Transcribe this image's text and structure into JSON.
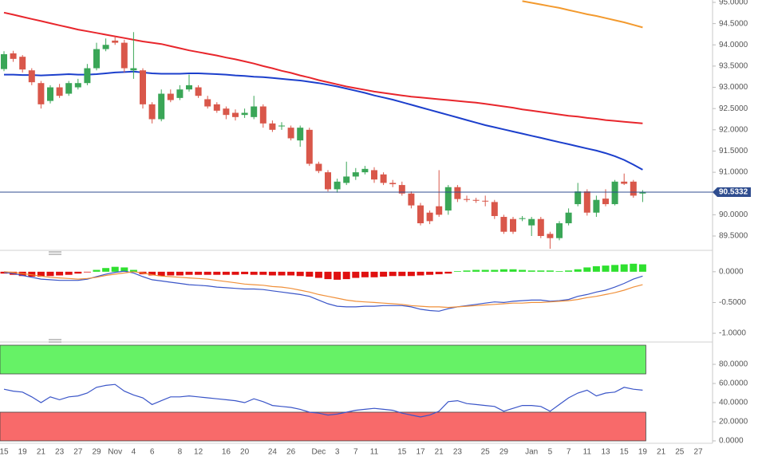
{
  "chart_data": [
    {
      "type": "candlestick",
      "categories": [
        "15",
        null,
        "19",
        null,
        "21",
        null,
        "23",
        null,
        "27",
        null,
        "29",
        null,
        "Nov",
        null,
        "4",
        null,
        "6",
        null,
        null,
        "8",
        null,
        "12",
        null,
        null,
        "16",
        null,
        "20",
        null,
        null,
        "24",
        null,
        "26",
        null,
        null,
        "Dec",
        null,
        "3",
        null,
        "7",
        null,
        "11",
        null,
        null,
        "15",
        null,
        "17",
        null,
        "21",
        null,
        "23",
        null,
        null,
        "25",
        null,
        "29",
        null,
        null,
        "Jan",
        null,
        "5",
        null,
        "7",
        null,
        "11",
        null,
        "13",
        null,
        "15",
        null,
        "19",
        null,
        "21",
        null,
        "25",
        null,
        "27"
      ],
      "open": [
        93.43,
        93.8,
        93.72,
        93.4,
        93.1,
        92.68,
        93.0,
        92.85,
        93.0,
        93.1,
        93.45,
        93.9,
        94.1,
        94.05,
        93.4,
        93.4,
        92.6,
        92.25,
        92.85,
        92.75,
        92.95,
        93.0,
        92.72,
        92.6,
        92.5,
        92.4,
        92.35,
        92.3,
        92.55,
        92.15,
        92.08,
        92.05,
        91.75,
        92.0,
        91.2,
        91.0,
        90.6,
        90.75,
        90.9,
        91.0,
        91.05,
        90.95,
        90.75,
        90.7,
        90.5,
        90.22,
        90.05,
        90.2,
        90.1,
        90.65,
        90.37,
        90.35,
        90.33,
        90.3,
        89.95,
        89.9,
        89.9,
        89.75,
        89.9,
        89.55,
        89.45,
        89.8,
        90.25,
        90.55,
        90.05,
        90.38,
        90.25,
        90.78,
        90.78,
        90.5,
        null,
        null,
        null,
        null,
        null,
        null
      ],
      "high": [
        93.85,
        93.86,
        93.76,
        93.45,
        93.15,
        93.05,
        93.08,
        93.15,
        93.2,
        93.55,
        94.05,
        94.15,
        94.2,
        94.12,
        94.3,
        93.45,
        92.65,
        92.95,
        92.95,
        93.05,
        93.3,
        93.05,
        92.8,
        92.65,
        92.55,
        92.48,
        92.5,
        92.8,
        92.6,
        92.22,
        92.18,
        92.1,
        92.1,
        92.05,
        91.25,
        91.05,
        90.85,
        91.25,
        91.1,
        91.15,
        91.12,
        91.0,
        90.82,
        90.78,
        90.55,
        90.28,
        90.1,
        91.05,
        90.7,
        90.7,
        90.45,
        90.4,
        90.45,
        90.35,
        90.0,
        89.95,
        89.97,
        89.95,
        89.95,
        89.6,
        89.85,
        90.15,
        90.75,
        90.6,
        90.45,
        90.6,
        90.82,
        90.97,
        90.82,
        90.58,
        null,
        null,
        null,
        null,
        null,
        null
      ],
      "low": [
        93.38,
        93.6,
        93.35,
        93.05,
        92.5,
        92.62,
        92.75,
        92.8,
        92.95,
        93.05,
        93.4,
        93.85,
        94.0,
        93.35,
        93.2,
        92.5,
        92.15,
        92.2,
        92.65,
        92.7,
        92.9,
        92.75,
        92.5,
        92.4,
        92.25,
        92.22,
        92.28,
        92.25,
        92.05,
        91.95,
        92.0,
        91.75,
        91.6,
        91.15,
        90.98,
        90.55,
        90.52,
        90.7,
        90.82,
        90.95,
        90.75,
        90.7,
        90.65,
        90.45,
        90.15,
        89.75,
        89.78,
        89.95,
        90.0,
        90.3,
        90.3,
        90.28,
        90.2,
        89.9,
        89.55,
        89.55,
        89.85,
        89.5,
        89.45,
        89.2,
        89.4,
        89.75,
        90.2,
        89.98,
        89.95,
        90.2,
        90.22,
        90.7,
        90.4,
        90.3,
        null,
        null,
        null,
        null,
        null,
        null
      ],
      "close": [
        93.78,
        93.67,
        93.42,
        93.12,
        92.6,
        93.0,
        92.8,
        93.1,
        93.1,
        93.45,
        93.9,
        94.0,
        94.05,
        93.45,
        93.45,
        92.6,
        92.25,
        92.85,
        92.7,
        92.95,
        93.05,
        92.8,
        92.55,
        92.45,
        92.35,
        92.3,
        92.4,
        92.55,
        92.15,
        92.0,
        92.1,
        91.8,
        92.05,
        91.2,
        91.03,
        90.6,
        90.78,
        90.9,
        91.0,
        91.08,
        90.83,
        90.75,
        90.72,
        90.5,
        90.22,
        89.8,
        89.85,
        90.0,
        90.65,
        90.37,
        90.35,
        90.33,
        90.32,
        89.97,
        89.6,
        89.6,
        89.92,
        89.9,
        89.5,
        89.45,
        89.8,
        90.05,
        90.55,
        90.05,
        90.35,
        90.25,
        90.78,
        90.73,
        90.45,
        90.53,
        null,
        null,
        null,
        null,
        null,
        null
      ],
      "up_color": "#3aa657",
      "down_color": "#d9574a",
      "lines": [
        {
          "color": "#e8262c",
          "values": [
            94.76,
            94.71,
            94.66,
            94.61,
            94.56,
            94.51,
            94.46,
            94.41,
            94.36,
            94.32,
            94.28,
            94.24,
            94.2,
            94.16,
            94.12,
            94.08,
            94.05,
            94.02,
            93.97,
            93.92,
            93.87,
            93.83,
            93.79,
            93.75,
            93.7,
            93.66,
            93.61,
            93.56,
            93.5,
            93.45,
            93.39,
            93.34,
            93.28,
            93.23,
            93.17,
            93.12,
            93.07,
            93.02,
            92.98,
            92.94,
            92.9,
            92.87,
            92.84,
            92.81,
            92.78,
            92.76,
            92.74,
            92.72,
            92.7,
            92.68,
            92.66,
            92.64,
            92.61,
            92.58,
            92.55,
            92.52,
            92.48,
            92.45,
            92.42,
            92.39,
            92.36,
            92.33,
            92.31,
            92.28,
            92.26,
            92.23,
            92.21,
            92.19,
            92.17,
            92.15,
            null,
            null,
            null,
            null,
            null,
            null
          ]
        },
        {
          "color": "#1c3fcc",
          "values": [
            93.3,
            93.3,
            93.29,
            93.29,
            93.28,
            93.29,
            93.3,
            93.31,
            93.3,
            93.3,
            93.31,
            93.33,
            93.35,
            93.36,
            93.37,
            93.35,
            93.33,
            93.32,
            93.32,
            93.32,
            93.33,
            93.33,
            93.32,
            93.31,
            93.3,
            93.28,
            93.27,
            93.25,
            93.24,
            93.22,
            93.2,
            93.18,
            93.16,
            93.13,
            93.1,
            93.06,
            93.02,
            92.97,
            92.92,
            92.87,
            92.81,
            92.76,
            92.71,
            92.65,
            92.59,
            92.53,
            92.47,
            92.41,
            92.35,
            92.29,
            92.23,
            92.17,
            92.11,
            92.06,
            92.01,
            91.96,
            91.91,
            91.86,
            91.81,
            91.76,
            91.71,
            91.66,
            91.61,
            91.56,
            91.51,
            91.45,
            91.38,
            91.29,
            91.18,
            91.06,
            null,
            null,
            null,
            null,
            null,
            null
          ]
        },
        {
          "color": "#f39a2e",
          "values": [
            null,
            null,
            null,
            null,
            null,
            null,
            null,
            null,
            null,
            null,
            null,
            null,
            null,
            null,
            null,
            null,
            null,
            null,
            null,
            null,
            null,
            null,
            null,
            null,
            null,
            null,
            null,
            null,
            null,
            null,
            null,
            null,
            null,
            null,
            null,
            null,
            null,
            null,
            null,
            null,
            null,
            null,
            null,
            null,
            null,
            null,
            null,
            null,
            null,
            null,
            null,
            null,
            null,
            null,
            null,
            null,
            95.03,
            94.99,
            94.95,
            94.91,
            94.87,
            94.82,
            94.77,
            94.72,
            94.68,
            94.63,
            94.58,
            94.53,
            94.47,
            94.41,
            null,
            null,
            null,
            null,
            null,
            null
          ]
        }
      ],
      "last_price": 90.5332,
      "last_price_color": "#2f4d8f",
      "ylim": [
        89.2,
        95.056
      ],
      "yticks": [
        {
          "value": 95,
          "label": "95.0000"
        },
        {
          "value": 94.5,
          "label": "94.5000"
        },
        {
          "value": 94,
          "label": "94.0000"
        },
        {
          "value": 93.5,
          "label": "93.5000"
        },
        {
          "value": 93,
          "label": "93.0000"
        },
        {
          "value": 92.5,
          "label": "92.5000"
        },
        {
          "value": 92,
          "label": "92.0000"
        },
        {
          "value": 91.5,
          "label": "91.5000"
        },
        {
          "value": 91,
          "label": "91.0000"
        },
        {
          "value": 90,
          "label": "90.0000"
        },
        {
          "value": 89.5,
          "label": "89.5000"
        }
      ]
    },
    {
      "type": "macd",
      "histogram": [
        -0.03,
        -0.05,
        -0.07,
        -0.08,
        -0.08,
        -0.07,
        -0.06,
        -0.05,
        -0.03,
        -0.01,
        0.03,
        0.06,
        0.08,
        0.07,
        0.03,
        -0.04,
        -0.06,
        -0.07,
        -0.06,
        -0.06,
        -0.05,
        -0.05,
        -0.05,
        -0.05,
        -0.05,
        -0.05,
        -0.04,
        -0.05,
        -0.05,
        -0.06,
        -0.06,
        -0.06,
        -0.07,
        -0.08,
        -0.1,
        -0.12,
        -0.13,
        -0.12,
        -0.1,
        -0.09,
        -0.09,
        -0.08,
        -0.07,
        -0.07,
        -0.07,
        -0.06,
        -0.05,
        -0.04,
        -0.03,
        0.01,
        0.02,
        0.03,
        0.03,
        0.03,
        0.04,
        0.04,
        0.03,
        0.02,
        0.02,
        0.02,
        0.01,
        0.02,
        0.04,
        0.07,
        0.09,
        0.1,
        0.11,
        0.12,
        0.13,
        0.12,
        null,
        null,
        null,
        null,
        null,
        null
      ],
      "up_color": "#2fe02f",
      "down_color": "#e01010",
      "lines": [
        {
          "color": "#3a55c8",
          "values": [
            -0.01,
            -0.03,
            -0.06,
            -0.09,
            -0.12,
            -0.13,
            -0.14,
            -0.14,
            -0.14,
            -0.12,
            -0.08,
            -0.04,
            -0.01,
            0.01,
            -0.02,
            -0.08,
            -0.13,
            -0.15,
            -0.17,
            -0.19,
            -0.21,
            -0.22,
            -0.23,
            -0.25,
            -0.26,
            -0.27,
            -0.28,
            -0.28,
            -0.29,
            -0.31,
            -0.33,
            -0.35,
            -0.37,
            -0.4,
            -0.46,
            -0.52,
            -0.56,
            -0.57,
            -0.57,
            -0.56,
            -0.56,
            -0.55,
            -0.55,
            -0.55,
            -0.57,
            -0.61,
            -0.63,
            -0.64,
            -0.6,
            -0.57,
            -0.55,
            -0.53,
            -0.51,
            -0.49,
            -0.5,
            -0.48,
            -0.47,
            -0.46,
            -0.46,
            -0.48,
            -0.47,
            -0.45,
            -0.4,
            -0.37,
            -0.33,
            -0.3,
            -0.25,
            -0.19,
            -0.12,
            -0.07,
            null,
            null,
            null,
            null,
            null,
            null
          ]
        },
        {
          "color": "#f0903a",
          "values": [
            0.0,
            -0.01,
            -0.03,
            -0.05,
            -0.07,
            -0.09,
            -0.1,
            -0.11,
            -0.12,
            -0.11,
            -0.09,
            -0.06,
            -0.04,
            -0.02,
            0.0,
            -0.02,
            -0.05,
            -0.07,
            -0.08,
            -0.09,
            -0.1,
            -0.11,
            -0.12,
            -0.14,
            -0.16,
            -0.18,
            -0.2,
            -0.21,
            -0.22,
            -0.24,
            -0.25,
            -0.27,
            -0.3,
            -0.33,
            -0.37,
            -0.4,
            -0.43,
            -0.46,
            -0.48,
            -0.49,
            -0.5,
            -0.51,
            -0.52,
            -0.53,
            -0.55,
            -0.56,
            -0.57,
            -0.57,
            -0.58,
            -0.57,
            -0.56,
            -0.55,
            -0.54,
            -0.53,
            -0.52,
            -0.51,
            -0.51,
            -0.5,
            -0.5,
            -0.49,
            -0.48,
            -0.47,
            -0.45,
            -0.42,
            -0.4,
            -0.37,
            -0.34,
            -0.3,
            -0.25,
            -0.21,
            null,
            null,
            null,
            null,
            null,
            null
          ]
        }
      ],
      "ylim": [
        -1.09,
        0.27
      ],
      "yticks": [
        {
          "value": 0,
          "label": "0.0000"
        },
        {
          "value": -0.5,
          "label": "-0.5000"
        },
        {
          "value": -1,
          "label": "-1.0000"
        }
      ]
    },
    {
      "type": "rsi",
      "values": [
        54,
        52,
        51,
        46,
        40,
        46,
        43,
        46,
        47,
        50,
        56,
        58,
        59,
        52,
        48,
        45,
        38,
        42,
        46,
        46,
        47,
        46,
        45,
        44,
        43,
        42,
        40,
        44,
        41,
        37,
        36,
        35,
        33,
        30,
        29,
        27,
        28,
        30,
        32,
        33,
        34,
        33,
        32,
        29,
        27,
        25,
        27,
        31,
        41,
        42,
        39,
        38,
        37,
        36,
        31,
        34,
        37,
        37,
        36,
        31,
        38,
        45,
        50,
        53,
        47,
        50,
        51,
        56,
        54,
        53,
        null,
        null,
        null,
        null,
        null,
        null
      ],
      "color": "#3a55c8",
      "overbought": 70,
      "oversold": 30,
      "overbought_color": "#66f266",
      "oversold_color": "#f86a6a",
      "ylim": [
        0,
        100
      ],
      "yticks": [
        {
          "value": 80,
          "label": "80.0000"
        },
        {
          "value": 60,
          "label": "60.0000"
        },
        {
          "value": 40,
          "label": "40.0000"
        },
        {
          "value": 20,
          "label": "20.0000"
        },
        {
          "value": 0,
          "label": "0.0000"
        }
      ]
    }
  ]
}
